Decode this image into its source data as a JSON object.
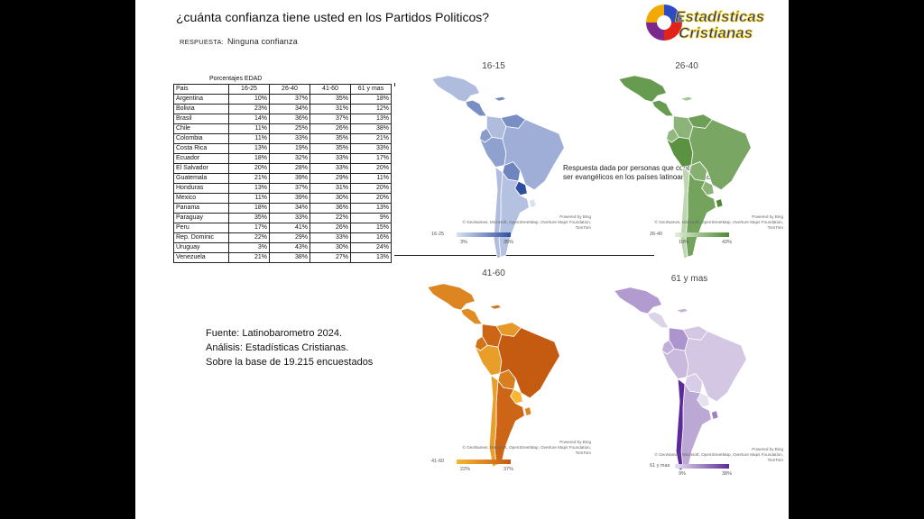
{
  "header": {
    "title": "¿cuánta confianza tiene usted en los Partidos Politicos?",
    "subtitle_label": "RESPUESTA:",
    "subtitle_value": "Ninguna confianza"
  },
  "logo": {
    "line1": "Estadísticas",
    "line2": "Cristianas"
  },
  "table": {
    "caption": "Porcentajes EDAD",
    "headers": [
      "Pais",
      "16-25",
      "26-40",
      "41-60",
      "61 y mas"
    ],
    "rows": [
      [
        "Argentina",
        "10%",
        "37%",
        "35%",
        "18%"
      ],
      [
        "Bolivia",
        "23%",
        "34%",
        "31%",
        "12%"
      ],
      [
        "Brasil",
        "14%",
        "36%",
        "37%",
        "13%"
      ],
      [
        "Chile",
        "11%",
        "25%",
        "26%",
        "38%"
      ],
      [
        "Colombia",
        "11%",
        "33%",
        "35%",
        "21%"
      ],
      [
        "Costa Rica",
        "13%",
        "19%",
        "35%",
        "33%"
      ],
      [
        "Ecuador",
        "18%",
        "32%",
        "33%",
        "17%"
      ],
      [
        "El Salvador",
        "20%",
        "28%",
        "33%",
        "20%"
      ],
      [
        "Guatemala",
        "21%",
        "39%",
        "29%",
        "11%"
      ],
      [
        "Honduras",
        "13%",
        "37%",
        "31%",
        "20%"
      ],
      [
        "Mexico",
        "11%",
        "39%",
        "30%",
        "20%"
      ],
      [
        "Panama",
        "18%",
        "34%",
        "36%",
        "13%"
      ],
      [
        "Paraguay",
        "35%",
        "33%",
        "22%",
        "9%"
      ],
      [
        "Peru",
        "17%",
        "41%",
        "26%",
        "15%"
      ],
      [
        "Rep. Dominic",
        "22%",
        "29%",
        "33%",
        "16%"
      ],
      [
        "Uruguay",
        "3%",
        "43%",
        "30%",
        "24%"
      ],
      [
        "Venezuela",
        "21%",
        "38%",
        "27%",
        "13%"
      ]
    ]
  },
  "note": "Respuesta dada por personas que contestaron ser evangélicos en los países latinoamericanos.",
  "source": {
    "line1": "Fuente: Latinobarometro 2024.",
    "line2": "Análisis: Estadísticas Cristianas.",
    "line3": "Sobre la base de 19.215 encuestados"
  },
  "maps": [
    {
      "title": "16-15",
      "legend_name": "16-25",
      "min_label": "3%",
      "max_label": "35%",
      "min_color": "#d9e1f2",
      "max_color": "#2f4ea0",
      "powered": [
        "Powered by Bing",
        "© GeoNames, Microsoft, OpenStreetMap, Overture Maps Foundation, TomTom"
      ]
    },
    {
      "title": "26-40",
      "legend_name": "26-40",
      "min_label": "19%",
      "max_label": "43%",
      "min_color": "#e2efd9",
      "max_color": "#4e8a33",
      "powered": [
        "Powered by Bing",
        "© GeoNames, Microsoft, OpenStreetMap, Overture Maps Foundation, TomTom"
      ]
    },
    {
      "title": "41-60",
      "legend_name": "41-60",
      "min_label": "22%",
      "max_label": "37%",
      "min_color": "#f7b733",
      "max_color": "#c55a11",
      "powered": [
        "Powered by Bing",
        "© GeoNames, Microsoft, OpenStreetMap, Overture Maps Foundation, TomTom"
      ]
    },
    {
      "title": "61 y mas",
      "legend_name": "61 y mas",
      "min_label": "9%",
      "max_label": "38%",
      "min_color": "#e6e0ef",
      "max_color": "#5b2a9a",
      "powered": [
        "Powered by Bing",
        "© GeoNames, Microsoft, OpenStreetMap, Overture Maps Foundation, TomTom"
      ]
    }
  ],
  "chart_data": {
    "type": "table",
    "title": "¿cuánta confianza tiene usted en los Partidos Politicos?",
    "categories": [
      "Argentina",
      "Bolivia",
      "Brasil",
      "Chile",
      "Colombia",
      "Costa Rica",
      "Ecuador",
      "El Salvador",
      "Guatemala",
      "Honduras",
      "Mexico",
      "Panama",
      "Paraguay",
      "Peru",
      "Rep. Dominic",
      "Uruguay",
      "Venezuela"
    ],
    "series": [
      {
        "name": "16-25",
        "values": [
          10,
          23,
          14,
          11,
          11,
          13,
          18,
          20,
          21,
          13,
          11,
          18,
          35,
          17,
          22,
          3,
          21
        ]
      },
      {
        "name": "26-40",
        "values": [
          37,
          34,
          36,
          25,
          33,
          19,
          32,
          28,
          39,
          37,
          39,
          34,
          33,
          41,
          29,
          43,
          38
        ]
      },
      {
        "name": "41-60",
        "values": [
          35,
          31,
          37,
          26,
          35,
          35,
          33,
          33,
          29,
          31,
          30,
          36,
          22,
          26,
          33,
          30,
          27
        ]
      },
      {
        "name": "61 y mas",
        "values": [
          18,
          12,
          13,
          38,
          21,
          33,
          17,
          20,
          11,
          20,
          20,
          13,
          9,
          15,
          16,
          24,
          13
        ]
      }
    ]
  }
}
